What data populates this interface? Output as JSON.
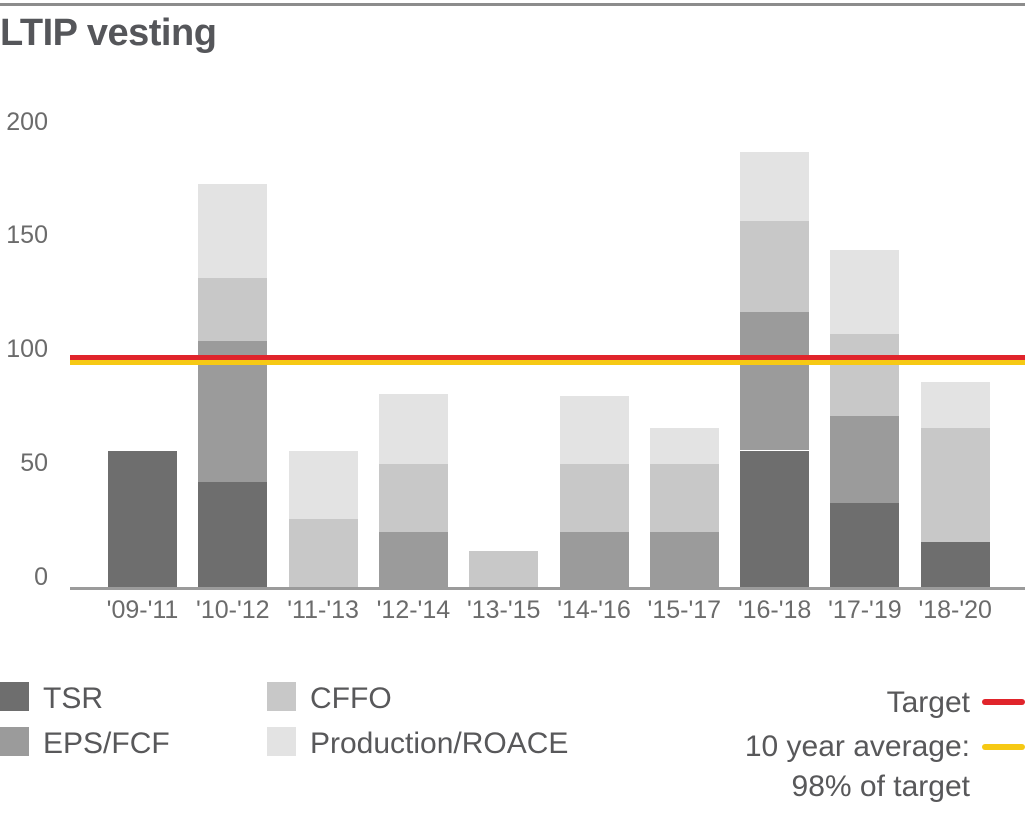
{
  "page": {
    "title": "LTIP vesting"
  },
  "colors": {
    "tsr": "#6e6e6e",
    "eps_fcf": "#9b9b9b",
    "cffo": "#c8c8c8",
    "production_roace": "#e3e3e3",
    "target_red": "#e0242b",
    "average_yellow": "#f6c914",
    "title_text": "#55565a",
    "tick_text": "#6b6b6b",
    "axis_line": "#9b9b9b",
    "top_border": "#8c8c8c"
  },
  "chart_data": {
    "type": "bar",
    "stacked": true,
    "title": "LTIP vesting",
    "categories": [
      "'09-'11",
      "'10-'12",
      "'11-'13",
      "'12-'14",
      "'13-'15",
      "'14-'16",
      "'15-'17",
      "'16-'18",
      "'17-'19",
      "'18-'20"
    ],
    "series": [
      {
        "name": "TSR",
        "color": "#6e6e6e",
        "values": [
          60,
          46,
          0,
          0,
          0,
          0,
          0,
          60,
          37,
          20
        ]
      },
      {
        "name": "EPS/FCF",
        "color": "#9b9b9b",
        "values": [
          0,
          62,
          0,
          24,
          0,
          24,
          24,
          61,
          38,
          0
        ]
      },
      {
        "name": "CFFO",
        "color": "#c8c8c8",
        "values": [
          0,
          28,
          30,
          30,
          16,
          30,
          30,
          40,
          36,
          50
        ]
      },
      {
        "name": "Production/ROACE",
        "color": "#e3e3e3",
        "values": [
          0,
          41,
          30,
          31,
          0,
          30,
          16,
          30,
          37,
          20
        ]
      }
    ],
    "stack_totals": [
      60,
      177,
      60,
      85,
      16,
      84,
      70,
      191,
      148,
      90
    ],
    "y_ticks": [
      0,
      50,
      100,
      150,
      200
    ],
    "ylim": [
      0,
      200
    ],
    "grid": false,
    "legend_position": "bottom",
    "reference_lines": [
      {
        "name": "target",
        "label": "Target",
        "value": 100,
        "color": "#e0242b"
      },
      {
        "name": "ten_year_average",
        "label": "10 year average: 98% of target",
        "value": 98,
        "color": "#f6c914"
      }
    ]
  },
  "legend": {
    "items": [
      {
        "label": "TSR"
      },
      {
        "label": "EPS/FCF"
      },
      {
        "label": "CFFO"
      },
      {
        "label": "Production/ROACE"
      }
    ],
    "target_label": "Target",
    "average_label_line1": "10 year average:",
    "average_label_line2": "98% of target"
  }
}
